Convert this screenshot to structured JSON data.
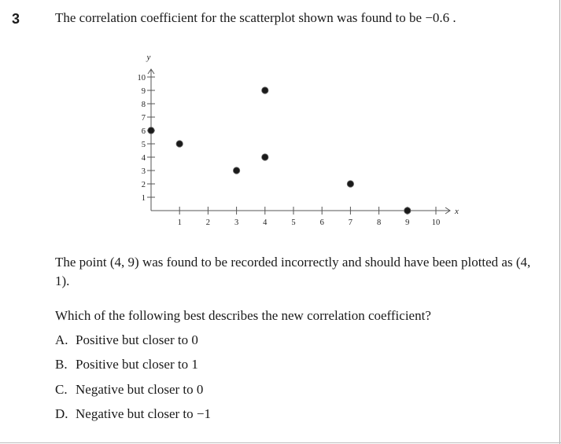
{
  "question": {
    "number": "3",
    "stem": "The correlation coefficient for the scatterplot shown was found to be −0.6 .",
    "correction": "The point (4, 9) was found to be recorded incorrectly and should have been plotted as (4, 1).",
    "prompt": "Which of the following best describes the new correlation coefficient?",
    "choices": [
      {
        "letter": "A.",
        "text": "Positive but closer to 0"
      },
      {
        "letter": "B.",
        "text": "Positive but closer to 1"
      },
      {
        "letter": "C.",
        "text": "Negative but closer to 0"
      },
      {
        "letter": "D.",
        "text": "Negative but closer to −1"
      }
    ]
  },
  "chart_data": {
    "type": "scatter",
    "title": "",
    "xlabel": "x",
    "ylabel": "y",
    "xlim": [
      0,
      10
    ],
    "ylim": [
      0,
      10
    ],
    "x_ticks": [
      1,
      2,
      3,
      4,
      5,
      6,
      7,
      8,
      9,
      10
    ],
    "y_ticks": [
      1,
      2,
      3,
      4,
      5,
      6,
      7,
      8,
      9,
      10
    ],
    "grid": false,
    "points": [
      {
        "x": 0,
        "y": 6
      },
      {
        "x": 1,
        "y": 5
      },
      {
        "x": 3,
        "y": 3
      },
      {
        "x": 4,
        "y": 9
      },
      {
        "x": 4,
        "y": 4
      },
      {
        "x": 7,
        "y": 2
      },
      {
        "x": 9,
        "y": 0
      }
    ],
    "colors": {
      "ink": "#1a1a1a",
      "axis": "#555555"
    }
  }
}
